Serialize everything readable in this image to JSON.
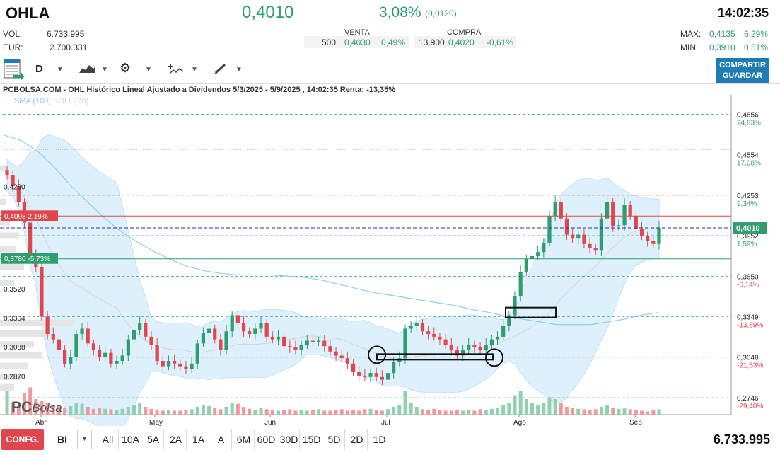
{
  "header": {
    "ticker": "OHLA",
    "price": "0,4010",
    "change_pct": "3,08%",
    "change_abs": "(0,0120)",
    "time": "14:02:35",
    "vol_label": "VOL:",
    "vol_value": "6.733.995",
    "eur_label": "EUR:",
    "eur_value": "2.700.331",
    "max_label": "MAX:",
    "max_value": "0,4135",
    "max_pct": "6,29%",
    "min_label": "MIN:",
    "min_value": "0,3910",
    "min_pct": "0,51%"
  },
  "quotes": {
    "venta_label": "VENTA",
    "venta_qty": "500",
    "venta_price": "0,4030",
    "venta_pct": "0,49%",
    "compra_label": "COMPRA",
    "compra_qty": "13.900",
    "compra_price": "0,4020",
    "compra_pct": "-0,61%"
  },
  "toolbar": {
    "period": "D",
    "share_line1": "COMPARTIR",
    "share_line2": "GUARDAR"
  },
  "chart_title": "PCBOLSA.COM - OHL Histórico Lineal Ajustado a Dividendos 5/3/2025 - 5/9/2025 , 14:02:35 Renta: -13,35%",
  "legend": {
    "sma": "SMA (100)",
    "boll": "BOLL (20)"
  },
  "watermark": {
    "pc": "PC",
    "bolsa": "Bolsa"
  },
  "bottom": {
    "config": "CONFG.",
    "bi": "BI",
    "ranges": [
      "All",
      "10A",
      "5A",
      "2A",
      "1A",
      "A",
      "6M",
      "60D",
      "30D",
      "15D",
      "5D",
      "2D",
      "1D"
    ],
    "total_volume": "6.733.995"
  },
  "colors": {
    "up": "#2e9e6e",
    "down": "#e0474c",
    "band": "#cfe9f9",
    "sma": "#8fcdf0"
  },
  "chart_data": {
    "type": "candlestick",
    "x_labels": [
      "Abr",
      "May",
      "Jun",
      "Jul",
      "Ago",
      "Sep"
    ],
    "ylim": [
      0.262,
      0.5
    ],
    "right_axis": [
      {
        "price": "0,4856",
        "pct": "24,83%",
        "v": 0.4856,
        "up": true
      },
      {
        "price": "0,4554",
        "pct": "17,08%",
        "v": 0.4554,
        "up": true
      },
      {
        "price": "0,4253",
        "pct": "9,34%",
        "v": 0.4253,
        "up": true
      },
      {
        "price": "0,3952",
        "pct": "1,59%",
        "v": 0.3952,
        "up": true
      },
      {
        "price": "0,3650",
        "pct": "-6,14%",
        "v": 0.365,
        "up": false
      },
      {
        "price": "0,3349",
        "pct": "-13,89%",
        "v": 0.3349,
        "up": false
      },
      {
        "price": "0,3048",
        "pct": "-21,63%",
        "v": 0.3048,
        "up": false
      },
      {
        "price": "0,2746",
        "pct": "-29,40%",
        "v": 0.2746,
        "up": false
      }
    ],
    "left_levels": [
      {
        "label": "0,4280",
        "v": 0.428
      },
      {
        "label": "0,3520",
        "v": 0.352
      },
      {
        "label": "0,3304",
        "v": 0.3304
      },
      {
        "label": "0,3088",
        "v": 0.3088
      },
      {
        "label": "0,2870",
        "v": 0.287
      }
    ],
    "markers": [
      {
        "label": "0,4098",
        "pct": "2,19%",
        "v": 0.4098,
        "color": "#e0474c"
      },
      {
        "label": "0,3780",
        "pct": "-5,73%",
        "v": 0.378,
        "color": "#2e9e6e"
      }
    ],
    "current": {
      "label": "0,4010",
      "v": 0.401
    },
    "candles_close": [
      0.44,
      0.432,
      0.42,
      0.405,
      0.38,
      0.372,
      0.335,
      0.322,
      0.318,
      0.31,
      0.3,
      0.305,
      0.322,
      0.326,
      0.315,
      0.31,
      0.305,
      0.308,
      0.3,
      0.302,
      0.306,
      0.318,
      0.325,
      0.33,
      0.32,
      0.314,
      0.302,
      0.298,
      0.302,
      0.3,
      0.298,
      0.296,
      0.3,
      0.315,
      0.323,
      0.326,
      0.318,
      0.31,
      0.324,
      0.336,
      0.33,
      0.324,
      0.322,
      0.326,
      0.33,
      0.32,
      0.318,
      0.32,
      0.313,
      0.312,
      0.31,
      0.314,
      0.317,
      0.316,
      0.317,
      0.313,
      0.309,
      0.306,
      0.304,
      0.3,
      0.294,
      0.291,
      0.29,
      0.293,
      0.29,
      0.288,
      0.293,
      0.301,
      0.304,
      0.326,
      0.328,
      0.33,
      0.324,
      0.322,
      0.32,
      0.318,
      0.314,
      0.31,
      0.306,
      0.31,
      0.314,
      0.312,
      0.31,
      0.314,
      0.318,
      0.32,
      0.328,
      0.336,
      0.35,
      0.368,
      0.378,
      0.38,
      0.383,
      0.39,
      0.41,
      0.42,
      0.408,
      0.396,
      0.393,
      0.396,
      0.389,
      0.386,
      0.384,
      0.408,
      0.42,
      0.402,
      0.403,
      0.418,
      0.41,
      0.4,
      0.395,
      0.391,
      0.389,
      0.401
    ],
    "volumes": [
      60,
      30,
      20,
      55,
      70,
      40,
      35,
      30,
      25,
      20,
      18,
      22,
      30,
      28,
      20,
      15,
      18,
      15,
      14,
      12,
      15,
      20,
      25,
      30,
      20,
      15,
      12,
      10,
      12,
      10,
      10,
      12,
      14,
      20,
      25,
      22,
      18,
      14,
      20,
      30,
      28,
      20,
      15,
      12,
      18,
      14,
      12,
      10,
      12,
      14,
      10,
      12,
      10,
      12,
      14,
      10,
      10,
      12,
      14,
      10,
      12,
      10,
      14,
      15,
      12,
      10,
      14,
      20,
      25,
      60,
      30,
      20,
      14,
      12,
      15,
      12,
      10,
      10,
      12,
      10,
      12,
      10,
      14,
      12,
      15,
      18,
      25,
      30,
      50,
      60,
      40,
      30,
      25,
      30,
      45,
      40,
      30,
      20,
      18,
      15,
      14,
      12,
      14,
      20,
      25,
      18,
      15,
      16,
      14,
      12,
      10,
      8,
      12,
      14
    ],
    "sma100": [
      0.47,
      0.466,
      0.458,
      0.446,
      0.432,
      0.42,
      0.408,
      0.398,
      0.39,
      0.383,
      0.377,
      0.372,
      0.369,
      0.367,
      0.366,
      0.366,
      0.366,
      0.365,
      0.364,
      0.362,
      0.359,
      0.356,
      0.353,
      0.351,
      0.349,
      0.347,
      0.345,
      0.343,
      0.34,
      0.338,
      0.335,
      0.333,
      0.331,
      0.329,
      0.329,
      0.329,
      0.331,
      0.333,
      0.336,
      0.338
    ]
  }
}
